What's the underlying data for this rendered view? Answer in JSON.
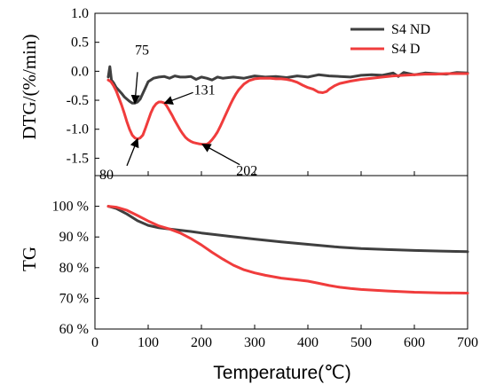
{
  "chart_data": [
    {
      "type": "line",
      "panel": "top",
      "ylabel": "DTG/(%/min)",
      "xlim": [
        0,
        700
      ],
      "ylim": [
        -1.8,
        1.0
      ],
      "yticks": [
        1.0,
        0.5,
        0.0,
        -0.5,
        -1.0,
        -1.5
      ],
      "ytick_labels": [
        "1.0",
        "0.5",
        "0.0",
        "-0.5",
        "-1.0",
        "-1.5"
      ],
      "legend_position": "top-right",
      "series": [
        {
          "name": "S4 ND",
          "color": "#3f3f3f",
          "x": [
            25,
            28,
            31,
            35,
            40,
            45,
            50,
            55,
            60,
            65,
            70,
            75,
            80,
            85,
            90,
            95,
            100,
            110,
            120,
            130,
            140,
            150,
            160,
            170,
            180,
            190,
            200,
            210,
            220,
            230,
            240,
            260,
            280,
            300,
            320,
            340,
            360,
            380,
            400,
            420,
            440,
            460,
            480,
            500,
            520,
            540,
            560,
            570,
            580,
            600,
            620,
            640,
            660,
            680,
            700
          ],
          "y": [
            -0.1,
            0.08,
            -0.15,
            -0.2,
            -0.28,
            -0.33,
            -0.38,
            -0.44,
            -0.48,
            -0.52,
            -0.55,
            -0.55,
            -0.53,
            -0.48,
            -0.38,
            -0.28,
            -0.18,
            -0.12,
            -0.1,
            -0.09,
            -0.12,
            -0.08,
            -0.1,
            -0.1,
            -0.09,
            -0.14,
            -0.1,
            -0.12,
            -0.15,
            -0.1,
            -0.12,
            -0.1,
            -0.12,
            -0.08,
            -0.1,
            -0.09,
            -0.11,
            -0.08,
            -0.1,
            -0.06,
            -0.08,
            -0.09,
            -0.1,
            -0.07,
            -0.06,
            -0.07,
            -0.03,
            -0.09,
            -0.02,
            -0.06,
            -0.03,
            -0.04,
            -0.05,
            -0.02,
            -0.03
          ]
        },
        {
          "name": "S4 D",
          "color": "#f03c3c",
          "x": [
            25,
            30,
            35,
            40,
            45,
            50,
            55,
            60,
            65,
            70,
            75,
            80,
            85,
            90,
            95,
            100,
            105,
            110,
            115,
            120,
            125,
            131,
            135,
            140,
            145,
            150,
            155,
            160,
            165,
            170,
            175,
            180,
            185,
            190,
            195,
            202,
            210,
            215,
            220,
            225,
            230,
            235,
            240,
            245,
            250,
            255,
            260,
            265,
            270,
            280,
            290,
            300,
            310,
            320,
            330,
            340,
            350,
            360,
            370,
            380,
            390,
            400,
            410,
            420,
            428,
            435,
            440,
            450,
            460,
            480,
            500,
            520,
            540,
            560,
            580,
            600,
            620,
            640,
            660,
            680,
            700
          ],
          "y": [
            -0.15,
            -0.18,
            -0.25,
            -0.34,
            -0.46,
            -0.58,
            -0.72,
            -0.87,
            -1.0,
            -1.1,
            -1.15,
            -1.17,
            -1.15,
            -1.1,
            -0.98,
            -0.85,
            -0.72,
            -0.62,
            -0.56,
            -0.53,
            -0.53,
            -0.55,
            -0.6,
            -0.68,
            -0.76,
            -0.85,
            -0.93,
            -1.01,
            -1.08,
            -1.14,
            -1.18,
            -1.21,
            -1.23,
            -1.24,
            -1.25,
            -1.26,
            -1.26,
            -1.23,
            -1.18,
            -1.12,
            -1.05,
            -0.96,
            -0.86,
            -0.76,
            -0.66,
            -0.56,
            -0.47,
            -0.39,
            -0.32,
            -0.22,
            -0.16,
            -0.13,
            -0.12,
            -0.12,
            -0.12,
            -0.13,
            -0.13,
            -0.14,
            -0.16,
            -0.19,
            -0.24,
            -0.28,
            -0.31,
            -0.36,
            -0.37,
            -0.35,
            -0.31,
            -0.25,
            -0.21,
            -0.17,
            -0.14,
            -0.12,
            -0.1,
            -0.08,
            -0.07,
            -0.06,
            -0.05,
            -0.05,
            -0.04,
            -0.04,
            -0.04
          ]
        }
      ],
      "annotations": [
        {
          "text": "75",
          "x": 75,
          "y": -0.55
        },
        {
          "text": "80",
          "x": 80,
          "y": -1.17
        },
        {
          "text": "131",
          "x": 131,
          "y": -0.55
        },
        {
          "text": "202",
          "x": 202,
          "y": -1.26
        }
      ]
    },
    {
      "type": "line",
      "panel": "bottom",
      "ylabel": "TG",
      "xlabel": "Temperature(℃)",
      "xlim": [
        0,
        700
      ],
      "ylim": [
        60,
        110
      ],
      "yticks": [
        60,
        70,
        80,
        90,
        100
      ],
      "ytick_labels": [
        "60 %",
        "70 %",
        "80 %",
        "90 %",
        "100 %"
      ],
      "xticks": [
        0,
        100,
        200,
        300,
        400,
        500,
        600,
        700
      ],
      "xtick_labels": [
        "0",
        "100",
        "200",
        "300",
        "400",
        "500",
        "600",
        "700"
      ],
      "series": [
        {
          "name": "S4 ND",
          "color": "#3f3f3f",
          "x": [
            25,
            40,
            60,
            80,
            100,
            120,
            140,
            160,
            180,
            200,
            250,
            300,
            350,
            400,
            450,
            500,
            550,
            600,
            650,
            700
          ],
          "y": [
            100,
            99.3,
            97.5,
            95.3,
            93.8,
            93.0,
            92.6,
            92.2,
            91.8,
            91.3,
            90.3,
            89.3,
            88.4,
            87.6,
            86.8,
            86.2,
            85.9,
            85.6,
            85.4,
            85.2
          ]
        },
        {
          "name": "S4 D",
          "color": "#f03c3c",
          "x": [
            25,
            40,
            60,
            80,
            100,
            120,
            140,
            160,
            180,
            200,
            220,
            240,
            260,
            280,
            300,
            320,
            350,
            380,
            400,
            420,
            440,
            460,
            480,
            500,
            550,
            600,
            650,
            700
          ],
          "y": [
            100,
            99.7,
            98.7,
            97.0,
            95.2,
            93.6,
            92.6,
            91.3,
            89.5,
            87.4,
            85.0,
            82.8,
            80.8,
            79.3,
            78.3,
            77.5,
            76.6,
            76.0,
            75.6,
            74.9,
            74.2,
            73.6,
            73.2,
            72.9,
            72.4,
            72.0,
            71.8,
            71.7
          ]
        }
      ]
    }
  ]
}
